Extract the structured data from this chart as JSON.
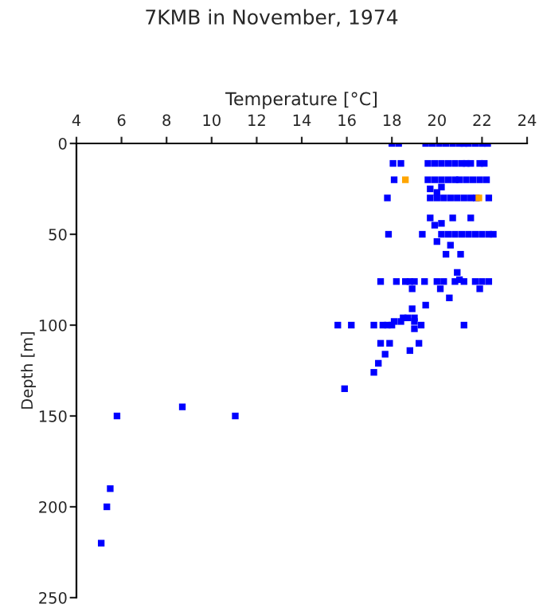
{
  "chart_data": {
    "type": "scatter",
    "title": "7KMB in November, 1974",
    "xlabel": "Temperature [°C]",
    "ylabel": "Depth [m]",
    "xlim": [
      4,
      24
    ],
    "xticks": [
      4,
      6,
      8,
      10,
      12,
      14,
      16,
      18,
      20,
      22,
      24
    ],
    "ylim": [
      250,
      0
    ],
    "yticks": [
      0,
      50,
      100,
      150,
      200,
      250
    ],
    "marker": "square",
    "grid": false,
    "series": [
      {
        "color": "#0000ff",
        "x": [
          18.0,
          18.3,
          19.5,
          19.8,
          20.1,
          20.4,
          20.7,
          21.0,
          21.2,
          21.4,
          21.7,
          22.0,
          22.25,
          18.05,
          18.4,
          19.6,
          19.9,
          20.2,
          20.5,
          20.8,
          21.1,
          21.3,
          21.5,
          21.9,
          22.1,
          18.1,
          19.6,
          19.9,
          20.2,
          20.5,
          20.8,
          21.0,
          21.3,
          21.6,
          21.9,
          22.2,
          19.7,
          20.0,
          20.2,
          17.8,
          19.7,
          20.0,
          20.3,
          20.6,
          20.9,
          21.2,
          21.5,
          21.75,
          22.3,
          19.7,
          20.7,
          21.5,
          19.9,
          20.2,
          17.85,
          19.35,
          20.2,
          20.5,
          20.8,
          21.1,
          21.4,
          21.7,
          22.0,
          22.3,
          22.5,
          20.0,
          20.6,
          20.4,
          21.05,
          20.9,
          21.0,
          17.5,
          18.2,
          18.6,
          18.8,
          19.0,
          19.45,
          20.0,
          20.3,
          20.8,
          21.2,
          21.7,
          22.0,
          22.3,
          18.9,
          20.15,
          21.9,
          20.55,
          19.5,
          18.9,
          18.5,
          18.7,
          19.0,
          18.1,
          18.4,
          19.0,
          15.6,
          16.2,
          17.2,
          17.6,
          17.8,
          18.0,
          19.3,
          21.2,
          19.0,
          17.5,
          17.9,
          19.2,
          18.8,
          17.7,
          17.4,
          17.2,
          15.9,
          5.8,
          8.7,
          11.05,
          5.5,
          5.35,
          5.1
        ],
        "values": [
          0,
          0,
          0,
          0,
          0,
          0,
          0,
          0,
          0,
          0,
          0,
          0,
          0,
          11,
          11,
          11,
          11,
          11,
          11,
          11,
          11,
          11,
          11,
          11,
          11,
          20,
          20,
          20,
          20,
          20,
          20,
          20,
          20,
          20,
          20,
          20,
          25,
          27,
          24,
          30,
          30,
          30,
          30,
          30,
          30,
          30,
          30,
          30,
          30,
          41,
          41,
          41,
          45,
          44,
          50,
          50,
          50,
          50,
          50,
          50,
          50,
          50,
          50,
          50,
          50,
          54,
          56,
          61,
          61,
          71,
          75,
          76,
          76,
          76,
          76,
          76,
          76,
          76,
          76,
          76,
          76,
          76,
          76,
          76,
          80,
          80,
          80,
          85,
          89,
          91,
          96,
          96,
          96,
          98,
          98,
          98,
          100,
          100,
          100,
          100,
          100,
          100,
          100,
          100,
          102,
          110,
          110,
          110,
          114,
          116,
          121,
          126,
          135,
          150,
          145,
          150,
          190,
          200,
          220
        ]
      },
      {
        "color": "#ffa500",
        "x": [
          18.6,
          21.86
        ],
        "values": [
          20,
          30
        ]
      }
    ]
  }
}
